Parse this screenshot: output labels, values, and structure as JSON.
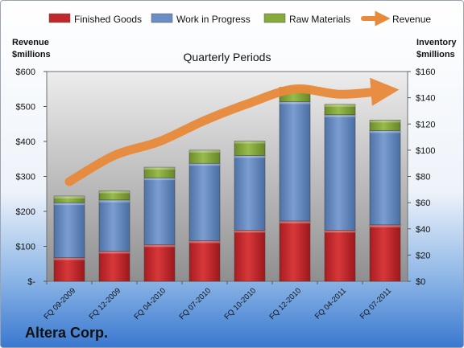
{
  "company": "Altera Corp.",
  "chart_data": {
    "type": "bar",
    "stacked": true,
    "title": "Quarterly Periods",
    "ylabel_left": "Revenue\n$millions",
    "ylabel_right": "Inventory\n$millions",
    "categories": [
      "FQ 09-2009",
      "FQ 12-2009",
      "FQ 04-2010",
      "FQ 07-2010",
      "FQ 10-2010",
      "FQ 12-2010",
      "FQ 04-2011",
      "FQ 07-2011"
    ],
    "ylim_left": [
      0,
      600
    ],
    "ylim_right": [
      0,
      160
    ],
    "yticks_left": [
      "$-",
      "$100",
      "$200",
      "$300",
      "$400",
      "$500",
      "$600"
    ],
    "yticks_right": [
      "$0",
      "$20",
      "$40",
      "$60",
      "$80",
      "$100",
      "$120",
      "$140",
      "$160"
    ],
    "legend_position": "top",
    "grid": false,
    "series": [
      {
        "name": "Finished Goods",
        "type": "bar",
        "axis": "right",
        "color": "#c0282b",
        "values": [
          18,
          23,
          28,
          31,
          39,
          46,
          39,
          43
        ]
      },
      {
        "name": "Work in Progress",
        "type": "bar",
        "axis": "right",
        "color": "#6a8ec4",
        "values": [
          42,
          39,
          51,
          59,
          57,
          91,
          88,
          72
        ]
      },
      {
        "name": "Raw Materials",
        "type": "bar",
        "axis": "right",
        "color": "#86aa3c",
        "values": [
          5,
          7,
          8,
          10,
          11,
          11,
          8,
          8
        ]
      },
      {
        "name": "Revenue",
        "type": "line",
        "axis": "left",
        "color": "#e88a3a",
        "values": [
          285,
          360,
          400,
          460,
          510,
          550,
          535,
          545
        ]
      }
    ]
  }
}
